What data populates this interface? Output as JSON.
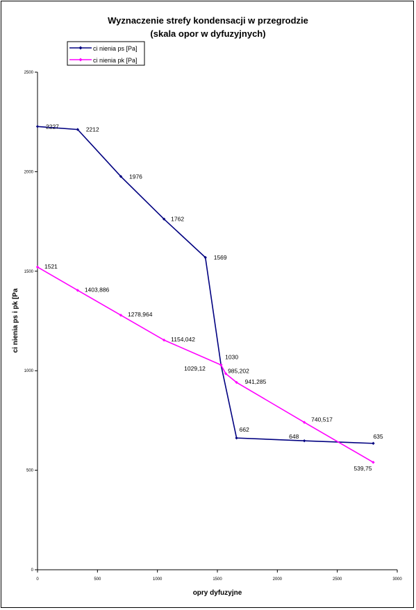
{
  "chart_data": {
    "type": "line",
    "title": "Wyznaczenie strefy kondensacji w przegrodzie",
    "subtitle": "(skala opor  w dyfuzyjnych)",
    "xlabel": "opry dyfuzyjne",
    "ylabel": "ci  nienia ps i pk [Pa",
    "xlim": [
      0,
      3000
    ],
    "ylim": [
      0,
      2500
    ],
    "x_ticks": [
      "0",
      "500",
      "1000",
      "1500",
      "2000",
      "2500",
      "3000"
    ],
    "y_ticks": [
      "0",
      "500",
      "1000",
      "1500",
      "2000",
      "2500"
    ],
    "grid": false,
    "legend_position": "top-left",
    "series": [
      {
        "name": "ci  nienia ps [Pa]",
        "color": "#000080",
        "marker": "diamond",
        "x": [
          0,
          335,
          695,
          1055,
          1400,
          1530,
          1660,
          2225,
          2800
        ],
        "y": [
          2227,
          2212,
          1976,
          1762,
          1569,
          1030,
          662,
          648,
          635
        ],
        "labels": [
          "2227",
          "2212",
          "1976",
          "1762",
          "1569",
          "1030",
          "662",
          "648",
          "635"
        ]
      },
      {
        "name": "ci  nienia pk [Pa]",
        "color": "#ff00ff",
        "marker": "diamond",
        "x": [
          0,
          335,
          695,
          1055,
          1530,
          1570,
          1660,
          2225,
          2800
        ],
        "y": [
          1521,
          1403.886,
          1278.964,
          1154.042,
          1029.12,
          985.202,
          941.285,
          740.517,
          539.75
        ],
        "labels": [
          "1521",
          "1403,886",
          "1278,964",
          "1154,042",
          "1029,12",
          "985,202",
          "941,285",
          "740,517",
          "539,75"
        ]
      }
    ]
  }
}
